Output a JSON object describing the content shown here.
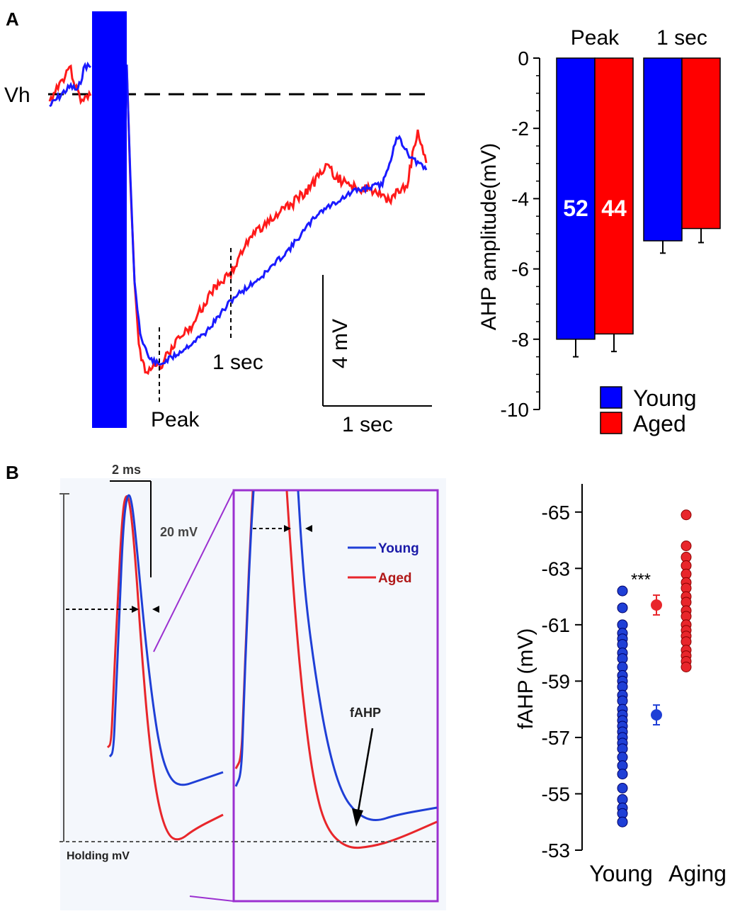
{
  "panel_a": {
    "label": "A",
    "trace": {
      "vh_label": "Vh",
      "peak_label": "Peak",
      "marker_1s_label": "1 sec",
      "scale_y_label": "4 mV",
      "scale_x_label": "1 sec",
      "colors": {
        "young": "#1a1aff",
        "aged": "#ff1a1a",
        "stimulus": "#0000ff"
      }
    }
  },
  "panel_b": {
    "label": "B",
    "ap": {
      "time_scale_label": "2 ms",
      "volt_scale_label": "20 mV",
      "holding_label": "Holding mV",
      "fahp_label": "fAHP",
      "legend": [
        "Young",
        "Aged"
      ],
      "zoom_box_color": "#9b30d0"
    }
  },
  "chart_data": [
    {
      "type": "bar",
      "ylabel": "AHP amplitude(mV)",
      "ylim": [
        -10,
        0
      ],
      "yticks": [
        0,
        -2,
        -4,
        -6,
        -8,
        -10
      ],
      "categories": [
        "Peak",
        "1 sec"
      ],
      "series": [
        {
          "name": "Young",
          "color": "#0000ff",
          "values": [
            -8.0,
            -5.2
          ],
          "errors": [
            0.5,
            0.35
          ]
        },
        {
          "name": "Aged",
          "color": "#ff0000",
          "values": [
            -7.85,
            -4.85
          ],
          "errors": [
            0.5,
            0.4
          ]
        }
      ],
      "bar_labels": [
        "52",
        "44"
      ],
      "legend": [
        "Young",
        "Aged"
      ]
    },
    {
      "type": "scatter",
      "ylabel": "fAHP (mV)",
      "ylim": [
        -53,
        -66
      ],
      "yticks": [
        -65,
        -63,
        -61,
        -59,
        -57,
        -55,
        -53
      ],
      "categories": [
        "Young",
        "Aging"
      ],
      "significance": "***",
      "series": [
        {
          "name": "Young",
          "color": "#1f3fd6",
          "values": [
            -62.2,
            -61.6,
            -61.0,
            -60.7,
            -60.5,
            -60.3,
            -60.0,
            -59.8,
            -59.5,
            -59.2,
            -59.0,
            -58.8,
            -58.5,
            -58.3,
            -58.0,
            -57.8,
            -57.6,
            -57.4,
            -57.2,
            -57.0,
            -56.8,
            -56.6,
            -56.3,
            -56.0,
            -55.7,
            -55.2,
            -54.8,
            -54.5,
            -54.3,
            -54.0
          ],
          "mean": -57.8,
          "sem": 0.35
        },
        {
          "name": "Aging",
          "color": "#e8262b",
          "values": [
            -64.9,
            -63.8,
            -63.4,
            -63.1,
            -62.8,
            -62.5,
            -62.3,
            -62.0,
            -61.8,
            -61.5,
            -61.3,
            -61.0,
            -60.8,
            -60.6,
            -60.4,
            -60.1,
            -59.9,
            -59.7,
            -59.5
          ],
          "mean": -61.7,
          "sem": 0.35
        }
      ]
    }
  ]
}
